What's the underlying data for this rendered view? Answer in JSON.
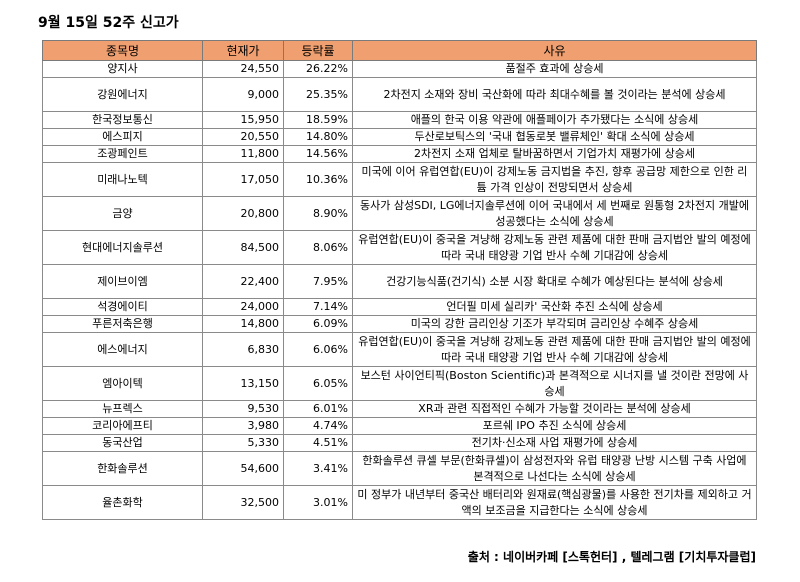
{
  "title": "9월 15일 52주 신고가",
  "headers": [
    "종목명",
    "현재가",
    "등락률",
    "사유"
  ],
  "rows": [
    {
      "name": "양지사",
      "price": "24,550",
      "change": "26.22%",
      "reason": "품절주 효과에 상승세"
    },
    {
      "name": "강원에너지",
      "price": "9,000",
      "change": "25.35%",
      "reason": "2차전지 소재와 장비 국산화에 따라 최대수혜를 볼 것이라는 분석에 상승세"
    },
    {
      "name": "한국정보통신",
      "price": "15,950",
      "change": "18.59%",
      "reason": "애플의 한국 이용 약관에 애플페이가 추가됐다는 소식에 상승세"
    },
    {
      "name": "에스피지",
      "price": "20,550",
      "change": "14.80%",
      "reason": "두산로보틱스의 '국내 협동로봇 밸류체인' 확대 소식에 상승세"
    },
    {
      "name": "조광페인트",
      "price": "11,800",
      "change": "14.56%",
      "reason": "2차전지 소재 업체로 탈바꿈하면서 기업가치 재평가에 상승세"
    },
    {
      "name": "미래나노텍",
      "price": "17,050",
      "change": "10.36%",
      "reason": "미국에 이어 유럽연합(EU)이 강제노동 금지법을 추진, 향후 공급망 제한으로 인한 리튬 가격 인상이 전망되면서 상승세"
    },
    {
      "name": "금양",
      "price": "20,800",
      "change": "8.90%",
      "reason": "동사가 삼성SDI, LG에너지솔루션에 이어 국내에서 세 번째로 원통형 2차전지 개발에 성공했다는 소식에 상승세"
    },
    {
      "name": "현대에너지솔루션",
      "price": "84,500",
      "change": "8.06%",
      "reason": "유럽연합(EU)이 중국을 겨냥해 강제노동 관련 제품에 대한 판매 금지법안 발의 예정에 따라 국내 태양광 기업 반사 수혜 기대감에 상승세"
    },
    {
      "name": "제이브이엠",
      "price": "22,400",
      "change": "7.95%",
      "reason": "건강기능식품(건기식) 소분 시장 확대로 수혜가 예상된다는 분석에 상승세"
    },
    {
      "name": "석경에이티",
      "price": "24,000",
      "change": "7.14%",
      "reason": "언더필 미세 실리카' 국산화 추진 소식에 상승세"
    },
    {
      "name": "푸른저축은행",
      "price": "14,800",
      "change": "6.09%",
      "reason": "미국의 강한 금리인상 기조가 부각되며 금리인상 수혜주 상승세"
    },
    {
      "name": "에스에너지",
      "price": "6,830",
      "change": "6.06%",
      "reason": "유럽연합(EU)이 중국을 겨냥해 강제노동 관련 제품에 대한 판매 금지법안 발의 예정에 따라 국내 태양광 기업 반사 수혜 기대감에 상승세"
    },
    {
      "name": "엠아이텍",
      "price": "13,150",
      "change": "6.05%",
      "reason": "보스턴 사이언티픽(Boston Scientific)과 본격적으로 시너지를 낼 것이란 전망에 사승세"
    },
    {
      "name": "뉴프렉스",
      "price": "9,530",
      "change": "6.01%",
      "reason": "XR과 관련 직접적인 수혜가 가능할 것이라는 분석에 상승세"
    },
    {
      "name": "코리아에프티",
      "price": "3,980",
      "change": "4.74%",
      "reason": "포르쉐 IPO 추진 소식에 상승세"
    },
    {
      "name": "동국산업",
      "price": "5,330",
      "change": "4.51%",
      "reason": "전기차·신소재 사업 재평가에 상승세"
    },
    {
      "name": "한화솔루션",
      "price": "54,600",
      "change": "3.41%",
      "reason": "한화솔루션 큐셀 부문(한화큐셀)이 삼성전자와 유럽 태양광 난방 시스템 구축 사업에 본격적으로 나선다는 소식에 상승세"
    },
    {
      "name": "율촌화학",
      "price": "32,500",
      "change": "3.01%",
      "reason": "미 정부가 내년부터 중국산 배터리와 원재료(핵심광물)를 사용한 전기차를 제외하고 거액의 보조금을 지급한다는 소식에 상승세"
    }
  ],
  "source": "출처 : 네이버카페 [스톡헌터] , 텔레그램 [기치투자클럽]"
}
